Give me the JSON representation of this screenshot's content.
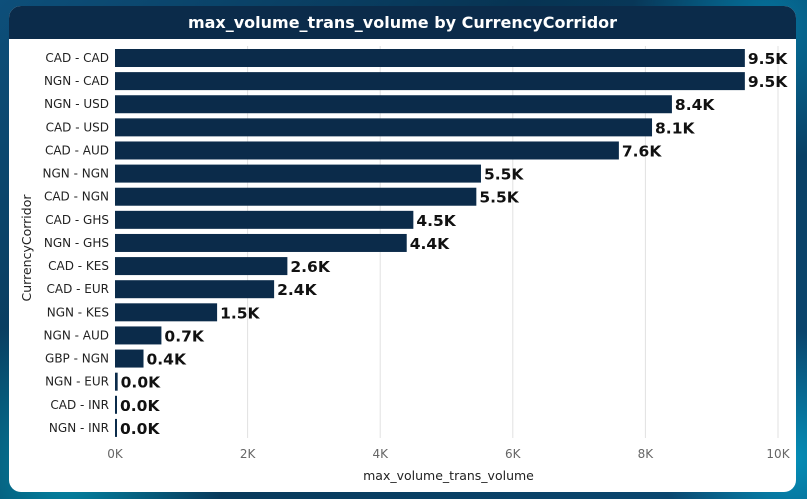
{
  "chart_data": {
    "type": "bar",
    "orientation": "horizontal",
    "title": "max_volume_trans_volume by CurrencyCorridor",
    "xlabel": "max_volume_trans_volume",
    "ylabel": "CurrencyCorridor",
    "xlim": [
      0,
      10000
    ],
    "x_ticks": [
      "0K",
      "2K",
      "4K",
      "6K",
      "8K",
      "10K"
    ],
    "grid": true,
    "bar_color": "#0b2b4a",
    "categories": [
      "CAD - CAD",
      "NGN - CAD",
      "NGN - USD",
      "CAD - USD",
      "CAD - AUD",
      "NGN - NGN",
      "CAD - NGN",
      "CAD - GHS",
      "NGN - GHS",
      "CAD - KES",
      "CAD - EUR",
      "NGN - KES",
      "NGN - AUD",
      "GBP - NGN",
      "NGN - EUR",
      "CAD - INR",
      "NGN - INR"
    ],
    "values": [
      9500,
      9500,
      8400,
      8100,
      7600,
      5520,
      5450,
      4500,
      4400,
      2600,
      2400,
      1540,
      700,
      430,
      40,
      30,
      30
    ],
    "data_labels": [
      "9.5K",
      "9.5K",
      "8.4K",
      "8.1K",
      "7.6K",
      "5.5K",
      "5.5K",
      "4.5K",
      "4.4K",
      "2.6K",
      "2.4K",
      "1.5K",
      "0.7K",
      "0.4K",
      "0.0K",
      "0.0K",
      "0.0K"
    ]
  }
}
